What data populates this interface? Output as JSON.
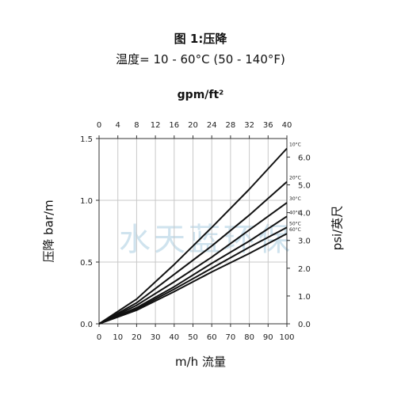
{
  "chart_data": {
    "type": "line",
    "title": "图 1:压降",
    "subtitle": "温度= 10 - 60°C (50 - 140°F)",
    "top_axis_label": "gpm/ft²",
    "xlabel": "m/h 流量",
    "ylabel": "压降 bar/m",
    "y2label": "psi/英尺",
    "watermark": "水天蓝环保",
    "xlim": [
      0,
      100
    ],
    "ylim": [
      0,
      1.5
    ],
    "x_ticks": [
      "0",
      "10",
      "20",
      "30",
      "40",
      "50",
      "60",
      "70",
      "80",
      "90",
      "100"
    ],
    "x2_ticks": [
      "0",
      "4",
      "8",
      "12",
      "16",
      "20",
      "24",
      "28",
      "32",
      "36",
      "40"
    ],
    "y_ticks": [
      "0.0",
      "0.5",
      "1.0",
      "1.5"
    ],
    "y_tick_values": [
      0,
      0.5,
      1.0,
      1.5
    ],
    "y2_ticks": [
      "0.0",
      "1.0",
      "2.0",
      "3.0",
      "4.0",
      "5.0",
      "6.0"
    ],
    "y2_tick_values": [
      0,
      0.225,
      0.45,
      0.675,
      0.9,
      1.125,
      1.35
    ],
    "grid": true,
    "series": [
      {
        "name": "10°C",
        "x": [
          0,
          20,
          40,
          60,
          80,
          100
        ],
        "y": [
          0,
          0.2,
          0.48,
          0.78,
          1.09,
          1.42
        ]
      },
      {
        "name": "20°C",
        "x": [
          0,
          20,
          40,
          60,
          80,
          100
        ],
        "y": [
          0,
          0.17,
          0.4,
          0.63,
          0.88,
          1.15
        ]
      },
      {
        "name": "30°C",
        "x": [
          0,
          20,
          40,
          60,
          80,
          100
        ],
        "y": [
          0,
          0.15,
          0.34,
          0.54,
          0.76,
          0.98
        ]
      },
      {
        "name": "40°C",
        "x": [
          0,
          20,
          40,
          60,
          80,
          100
        ],
        "y": [
          0,
          0.13,
          0.3,
          0.49,
          0.67,
          0.87
        ]
      },
      {
        "name": "50°C",
        "x": [
          0,
          20,
          40,
          60,
          80,
          100
        ],
        "y": [
          0,
          0.12,
          0.28,
          0.45,
          0.62,
          0.78
        ]
      },
      {
        "name": "60°C",
        "x": [
          0,
          20,
          40,
          60,
          80,
          100
        ],
        "y": [
          0,
          0.11,
          0.26,
          0.42,
          0.57,
          0.73
        ]
      }
    ]
  }
}
